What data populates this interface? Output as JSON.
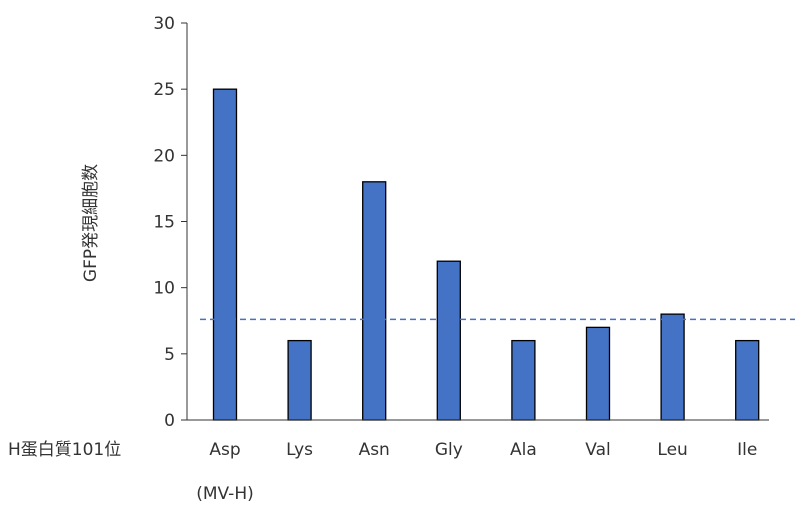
{
  "chart_data": {
    "type": "bar",
    "categories": [
      "Asp",
      "Lys",
      "Asn",
      "Gly",
      "Ala",
      "Val",
      "Leu",
      "Ile"
    ],
    "category_sublabels": [
      "(MV-H)",
      "",
      "",
      "",
      "",
      "",
      "",
      ""
    ],
    "values": [
      25,
      6,
      18,
      12,
      6,
      7,
      8,
      6
    ],
    "title": "",
    "xlabel": "H蛋白質101位",
    "ylabel": "GFP発現細胞数",
    "ylim": [
      0,
      30
    ],
    "yticks": [
      0,
      5,
      10,
      15,
      20,
      25,
      30
    ],
    "reference_line": {
      "value": 7.6,
      "style": "dashed"
    },
    "grid": false,
    "legend": "none",
    "colors": {
      "bar": "#4472C4",
      "bar_border": "#000000",
      "reference_line": "#4472C4",
      "axis": "#333333"
    }
  }
}
